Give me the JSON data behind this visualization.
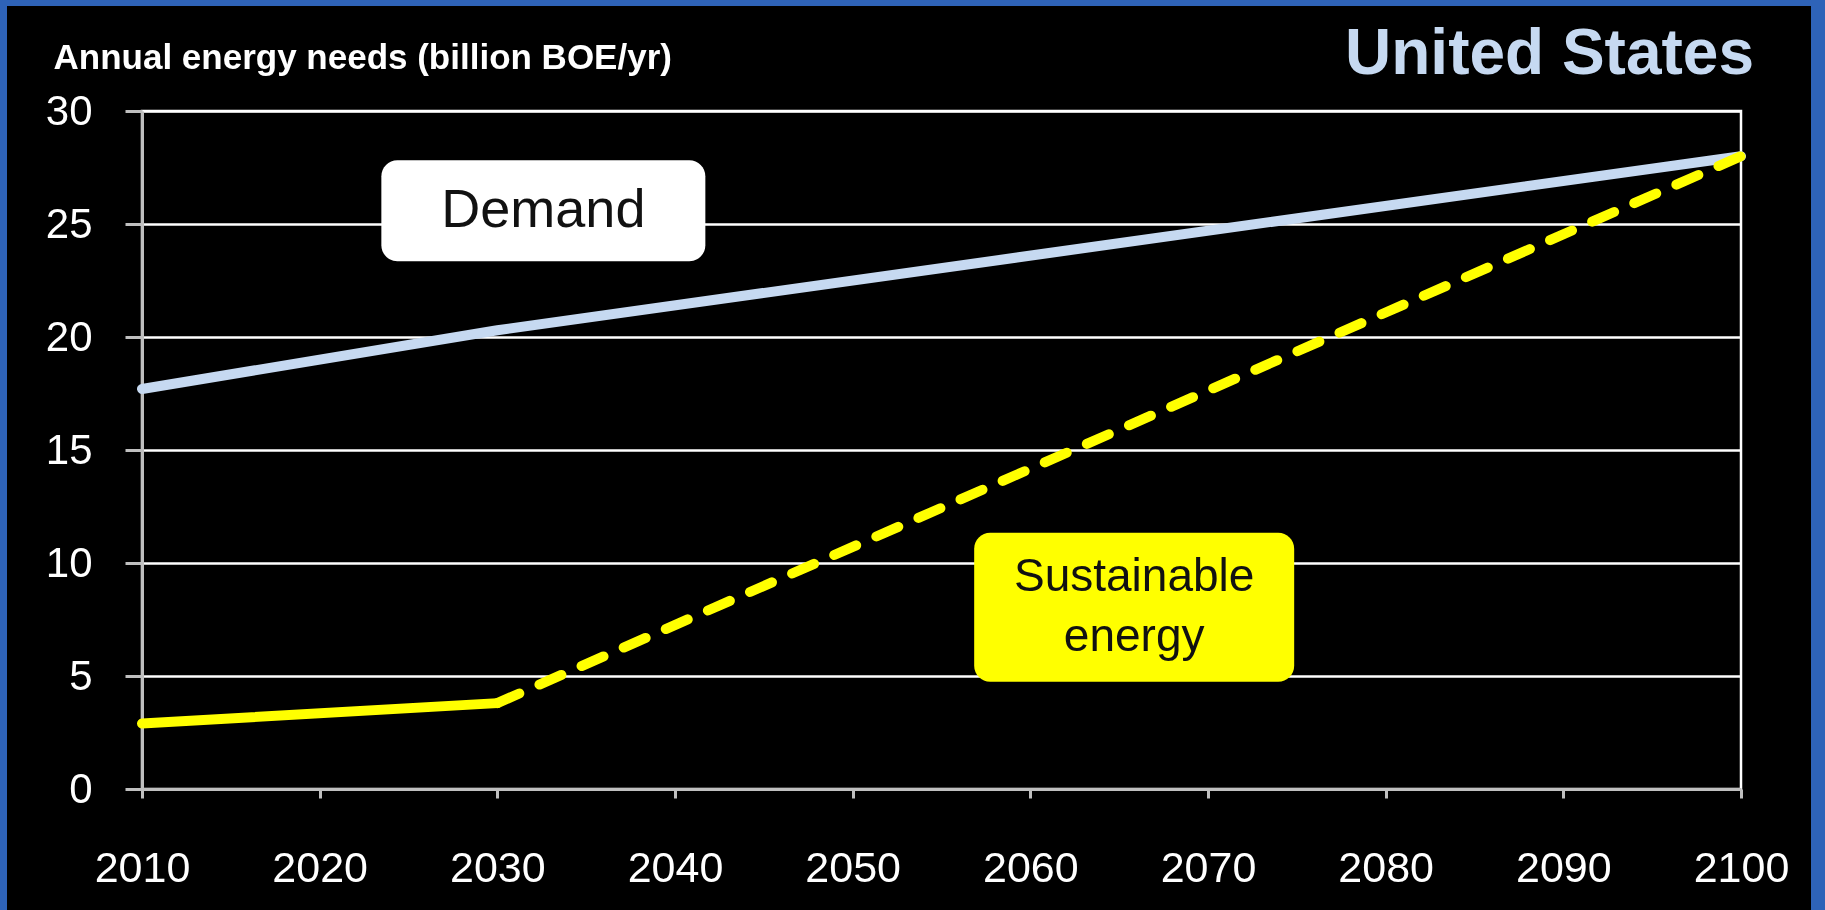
{
  "chart_data": {
    "type": "line",
    "title": "United States",
    "ylabel": "Annual energy needs (billion BOE/yr)",
    "series": [
      {
        "name": "Demand",
        "color": "#c6d9f1",
        "x": [
          2010,
          2030,
          2100
        ],
        "values": [
          17.7,
          20.3,
          28
        ],
        "line_style": "solid"
      },
      {
        "color": "#ffff00",
        "x": [
          2010,
          2030
        ],
        "values": [
          2.9,
          3.8
        ],
        "line_style": "solid"
      },
      {
        "name": "Sustainable energy",
        "color": "#ffff00",
        "x": [
          2030,
          2100
        ],
        "values": [
          3.8,
          28
        ],
        "line_style": "dashed"
      }
    ],
    "xlim": [
      2010,
      2100
    ],
    "xticks": [
      2010,
      2020,
      2030,
      2040,
      2050,
      2060,
      2070,
      2080,
      2090,
      2100
    ],
    "ylim": [
      0,
      30
    ],
    "yticks": [
      0,
      5,
      10,
      15,
      20,
      25,
      30
    ],
    "grid": "y",
    "legend": false
  }
}
